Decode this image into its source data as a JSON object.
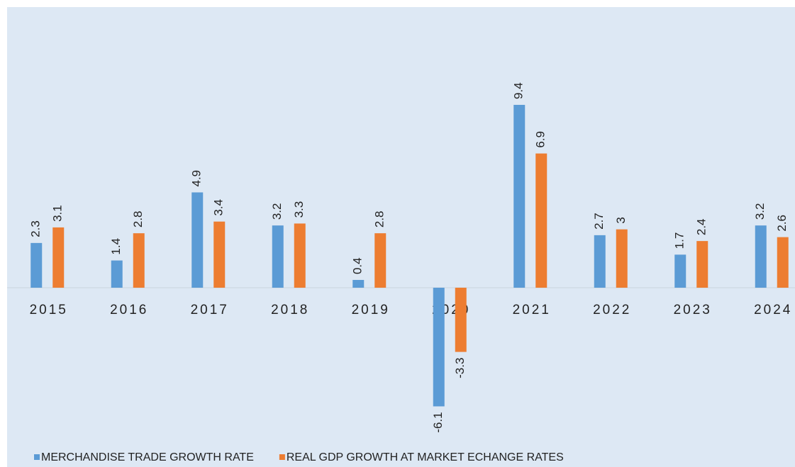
{
  "chart_data": {
    "type": "bar",
    "categories": [
      "2015",
      "2016",
      "2017",
      "2018",
      "2019",
      "2020",
      "2021",
      "2022",
      "2023",
      "2024"
    ],
    "series": [
      {
        "name": "MERCHANDISE TRADE GROWTH RATE",
        "color": "#5b9bd5",
        "values": [
          2.3,
          1.4,
          4.9,
          3.2,
          0.4,
          -6.1,
          9.4,
          2.7,
          1.7,
          3.2
        ]
      },
      {
        "name": "REAL GDP GROWTH AT MARKET ECHANGE RATES",
        "color": "#ed7d31",
        "values": [
          3.1,
          2.8,
          3.4,
          3.3,
          2.8,
          -3.3,
          6.9,
          3,
          2.4,
          2.6
        ]
      }
    ],
    "legend": "bottom"
  }
}
